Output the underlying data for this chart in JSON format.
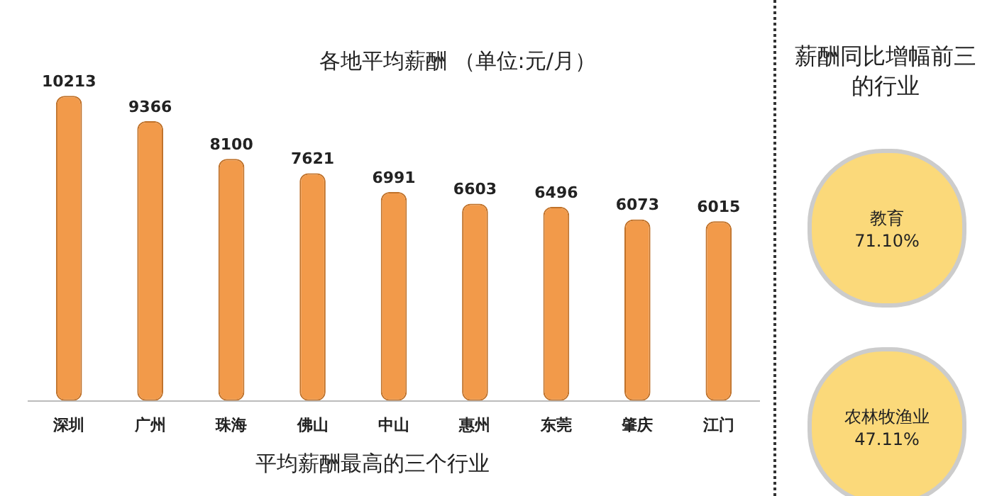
{
  "chart_data": [
    {
      "type": "bar",
      "title": "各地平均薪酬 （单位:元/月）",
      "categories": [
        "深圳",
        "广州",
        "珠海",
        "佛山",
        "中山",
        "惠州",
        "东莞",
        "肇庆",
        "江门"
      ],
      "values": [
        10213,
        9366,
        8100,
        7621,
        6991,
        6603,
        6496,
        6073,
        6015
      ],
      "color": "#f29a4a",
      "data_labels": true,
      "grid": false,
      "legend": false,
      "annotations": [
        "平均薪酬最高的三个行业"
      ]
    },
    {
      "type": "other",
      "title": "薪酬同比增幅前三的行业",
      "annotations": [
        "教育",
        "71.10%",
        "农林牧渔业",
        "47.11%"
      ]
    }
  ]
}
